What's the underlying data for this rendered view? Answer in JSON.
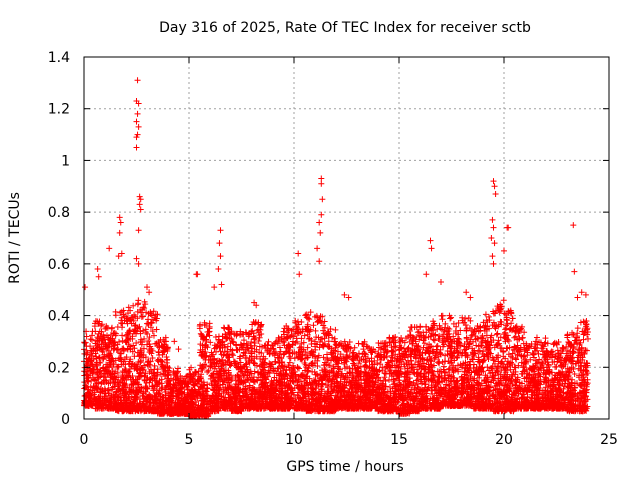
{
  "chart_data": {
    "type": "scatter",
    "title": "Day 316 of 2025, Rate Of TEC Index for receiver sctb",
    "xlabel": "GPS time / hours",
    "ylabel": "ROTI / TECUs",
    "xlim": [
      0,
      25
    ],
    "ylim": [
      0,
      1.4
    ],
    "xticks": [
      0,
      5,
      10,
      15,
      20,
      25
    ],
    "yticks": [
      0,
      0.2,
      0.4,
      0.6,
      0.8,
      1,
      1.2,
      1.4
    ],
    "xtick_labels": [
      "0",
      "5",
      "10",
      "15",
      "20",
      "25"
    ],
    "ytick_labels": [
      "0",
      "0.2",
      "0.4",
      "0.6",
      "0.8",
      "1",
      "1.2",
      "1.4"
    ],
    "grid": true,
    "marker": "+",
    "color": "#ff0000",
    "series": [
      {
        "name": "ROTI",
        "points": [
          [
            2.55,
            1.31
          ],
          [
            2.5,
            1.23
          ],
          [
            2.6,
            1.22
          ],
          [
            2.55,
            1.18
          ],
          [
            2.5,
            1.15
          ],
          [
            2.6,
            1.13
          ],
          [
            2.5,
            1.09
          ],
          [
            2.55,
            1.1
          ],
          [
            2.5,
            1.05
          ],
          [
            2.65,
            0.86
          ],
          [
            2.7,
            0.85
          ],
          [
            2.65,
            0.83
          ],
          [
            2.7,
            0.81
          ],
          [
            2.6,
            0.73
          ],
          [
            1.7,
            0.78
          ],
          [
            1.75,
            0.76
          ],
          [
            1.7,
            0.72
          ],
          [
            1.8,
            0.64
          ],
          [
            1.65,
            0.63
          ],
          [
            1.2,
            0.66
          ],
          [
            2.5,
            0.62
          ],
          [
            2.6,
            0.6
          ],
          [
            0.65,
            0.58
          ],
          [
            0.7,
            0.55
          ],
          [
            0.05,
            0.51
          ],
          [
            11.3,
            0.93
          ],
          [
            11.3,
            0.91
          ],
          [
            11.35,
            0.85
          ],
          [
            11.3,
            0.79
          ],
          [
            11.2,
            0.76
          ],
          [
            11.25,
            0.72
          ],
          [
            11.1,
            0.66
          ],
          [
            11.2,
            0.61
          ],
          [
            10.2,
            0.64
          ],
          [
            10.25,
            0.56
          ],
          [
            19.5,
            0.92
          ],
          [
            19.55,
            0.9
          ],
          [
            19.6,
            0.87
          ],
          [
            19.45,
            0.77
          ],
          [
            19.5,
            0.74
          ],
          [
            19.4,
            0.7
          ],
          [
            19.55,
            0.68
          ],
          [
            20.15,
            0.74
          ],
          [
            20.2,
            0.74
          ],
          [
            19.45,
            0.63
          ],
          [
            20.0,
            0.65
          ],
          [
            19.5,
            0.6
          ],
          [
            23.3,
            0.75
          ],
          [
            23.35,
            0.57
          ],
          [
            16.5,
            0.69
          ],
          [
            16.55,
            0.66
          ],
          [
            16.3,
            0.56
          ],
          [
            17.0,
            0.53
          ],
          [
            6.5,
            0.73
          ],
          [
            6.45,
            0.68
          ],
          [
            6.5,
            0.63
          ],
          [
            6.4,
            0.58
          ],
          [
            6.55,
            0.52
          ],
          [
            5.35,
            0.56
          ],
          [
            5.4,
            0.56
          ],
          [
            6.2,
            0.51
          ],
          [
            3.0,
            0.51
          ],
          [
            3.1,
            0.49
          ],
          [
            18.2,
            0.49
          ],
          [
            18.4,
            0.47
          ],
          [
            23.7,
            0.49
          ],
          [
            23.9,
            0.48
          ],
          [
            23.5,
            0.47
          ],
          [
            8.1,
            0.45
          ],
          [
            8.2,
            0.44
          ],
          [
            12.4,
            0.48
          ],
          [
            12.6,
            0.47
          ],
          [
            4.3,
            0.3
          ],
          [
            4.5,
            0.27
          ]
        ]
      }
    ],
    "dense_band": {
      "description_free": true,
      "segments": [
        [
          0.0,
          0.05,
          0.34
        ],
        [
          0.5,
          0.04,
          0.38
        ],
        [
          1.0,
          0.04,
          0.36
        ],
        [
          1.5,
          0.03,
          0.42
        ],
        [
          2.0,
          0.03,
          0.44
        ],
        [
          2.5,
          0.03,
          0.46
        ],
        [
          3.0,
          0.03,
          0.42
        ],
        [
          3.5,
          0.02,
          0.32
        ],
        [
          4.0,
          0.02,
          0.2
        ],
        [
          4.5,
          0.02,
          0.17
        ],
        [
          5.0,
          0.01,
          0.2
        ],
        [
          5.5,
          0.01,
          0.38
        ],
        [
          6.0,
          0.03,
          0.32
        ],
        [
          6.5,
          0.04,
          0.36
        ],
        [
          7.0,
          0.03,
          0.34
        ],
        [
          7.5,
          0.04,
          0.34
        ],
        [
          8.0,
          0.04,
          0.38
        ],
        [
          8.5,
          0.04,
          0.3
        ],
        [
          9.0,
          0.04,
          0.32
        ],
        [
          9.5,
          0.04,
          0.36
        ],
        [
          10.0,
          0.04,
          0.38
        ],
        [
          10.5,
          0.03,
          0.42
        ],
        [
          11.0,
          0.03,
          0.4
        ],
        [
          11.5,
          0.03,
          0.36
        ],
        [
          12.0,
          0.04,
          0.3
        ],
        [
          12.5,
          0.04,
          0.3
        ],
        [
          13.0,
          0.04,
          0.3
        ],
        [
          13.5,
          0.04,
          0.28
        ],
        [
          14.0,
          0.03,
          0.3
        ],
        [
          14.5,
          0.03,
          0.32
        ],
        [
          15.0,
          0.02,
          0.32
        ],
        [
          15.5,
          0.03,
          0.36
        ],
        [
          16.0,
          0.04,
          0.36
        ],
        [
          16.5,
          0.04,
          0.38
        ],
        [
          17.0,
          0.05,
          0.4
        ],
        [
          17.5,
          0.05,
          0.38
        ],
        [
          18.0,
          0.05,
          0.4
        ],
        [
          18.5,
          0.04,
          0.36
        ],
        [
          19.0,
          0.04,
          0.42
        ],
        [
          19.5,
          0.03,
          0.46
        ],
        [
          20.0,
          0.03,
          0.42
        ],
        [
          20.5,
          0.04,
          0.36
        ],
        [
          21.0,
          0.04,
          0.3
        ],
        [
          21.5,
          0.04,
          0.32
        ],
        [
          22.0,
          0.04,
          0.3
        ],
        [
          22.5,
          0.04,
          0.3
        ],
        [
          23.0,
          0.03,
          0.34
        ],
        [
          23.5,
          0.03,
          0.38
        ]
      ]
    }
  }
}
